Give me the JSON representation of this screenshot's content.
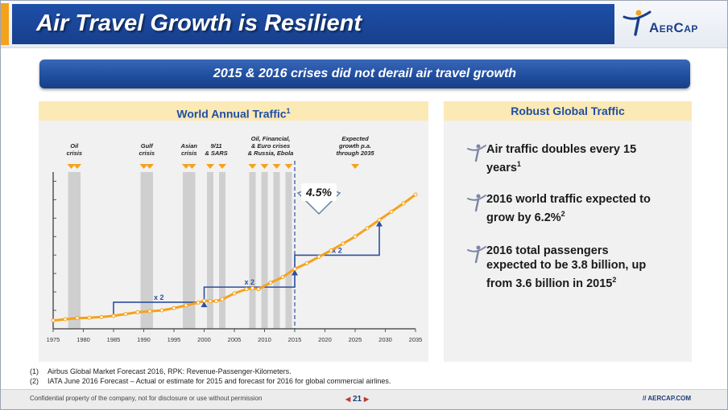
{
  "header": {
    "title": "Air Travel Growth is Resilient",
    "logo_text": "AerCap"
  },
  "banner": {
    "text": "2015 & 2016 crises did not derail air travel growth"
  },
  "left_panel": {
    "title": "World Annual Traffic",
    "title_sup": "1"
  },
  "right_panel": {
    "title": "Robust Global Traffic",
    "points": [
      {
        "text": "Air traffic doubles every 15 years",
        "sup": "1",
        "icon": "aercap-figure-icon"
      },
      {
        "text": "2016 world traffic expected to grow by 6.2%",
        "sup": "2",
        "icon": "aercap-figure-icon"
      },
      {
        "text": "2016 total passengers expected to be 3.8 billion, up from 3.6 billion in 2015",
        "sup": "2",
        "icon": "aercap-figure-icon"
      }
    ]
  },
  "chart_data": {
    "type": "line",
    "title": "World Annual Traffic",
    "x": [
      1975,
      1977,
      1979,
      1981,
      1983,
      1985,
      1987,
      1989,
      1991,
      1993,
      1995,
      1997,
      1999,
      2000,
      2001,
      2002,
      2003,
      2005,
      2007,
      2008,
      2009,
      2011,
      2013,
      2015,
      2017,
      2019,
      2021,
      2023,
      2025,
      2027,
      2029,
      2031,
      2033,
      2035
    ],
    "series": [
      {
        "values": [
          0.45,
          0.52,
          0.58,
          0.6,
          0.64,
          0.7,
          0.8,
          0.9,
          0.95,
          1.0,
          1.12,
          1.27,
          1.42,
          1.52,
          1.5,
          1.5,
          1.6,
          1.92,
          2.15,
          2.2,
          2.15,
          2.5,
          2.8,
          3.25,
          3.55,
          3.9,
          4.25,
          4.62,
          5.0,
          5.45,
          5.9,
          6.35,
          6.8,
          7.28
        ]
      }
    ],
    "x_ticks": [
      1975,
      1980,
      1985,
      1990,
      1995,
      2000,
      2005,
      2010,
      2015,
      2020,
      2025,
      2030,
      2035
    ],
    "xlim": [
      1975,
      2035
    ],
    "ylim": [
      0,
      8.5
    ],
    "forecast_start": 2015,
    "crises": [
      {
        "label": "Oil crisis",
        "years": [
          1978,
          1979
        ]
      },
      {
        "label": "Gulf crisis",
        "years": [
          1990,
          1991
        ]
      },
      {
        "label": "Asian crisis",
        "years": [
          1997,
          1998
        ]
      },
      {
        "label": "9/11 & SARS",
        "years": [
          2001,
          2003
        ]
      },
      {
        "label": "Oil, Financial, & Euro crises & Russia, Ebola",
        "years": [
          2008,
          2010,
          2012,
          2014
        ]
      }
    ],
    "expected_label": "Expected growth p.a. through 2035",
    "growth_value": "4.5%",
    "doubling_label": "x 2",
    "color": "#f5a21b"
  },
  "footnotes": [
    {
      "num": "(1)",
      "text": "Airbus Global Market Forecast 2016, RPK: Revenue-Passenger-Kilometers."
    },
    {
      "num": "(2)",
      "text": "IATA June 2016 Forecast – Actual or estimate for 2015 and forecast for 2016 for global commercial airlines."
    }
  ],
  "footer": {
    "confidential": "Confidential property of the company, not for disclosure or use without permission",
    "page": "21",
    "website": "AERCAP.COM"
  }
}
